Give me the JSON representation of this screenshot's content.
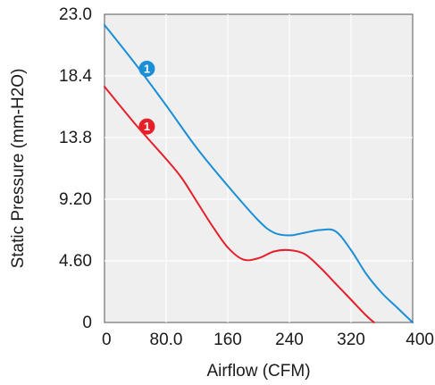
{
  "chart_data": {
    "type": "line",
    "title": "",
    "xlabel": "Airflow (CFM)",
    "ylabel": "Static Pressure (mm-H2O)",
    "xlim": [
      0,
      400
    ],
    "ylim": [
      0,
      23.0
    ],
    "x_ticks": [
      "0",
      "80.0",
      "160",
      "240",
      "320",
      "400"
    ],
    "y_ticks": [
      "0",
      "4.60",
      "9.20",
      "13.8",
      "18.4",
      "23.0"
    ],
    "grid": true,
    "series": [
      {
        "marker": "1",
        "color": "#1b8fd6",
        "points": [
          [
            0,
            22.2
          ],
          [
            40,
            19.3
          ],
          [
            80,
            16.2
          ],
          [
            120,
            13.0
          ],
          [
            160,
            10.2
          ],
          [
            200,
            7.6
          ],
          [
            220,
            6.7
          ],
          [
            240,
            6.5
          ],
          [
            260,
            6.7
          ],
          [
            280,
            6.9
          ],
          [
            300,
            6.8
          ],
          [
            320,
            5.4
          ],
          [
            340,
            3.6
          ],
          [
            360,
            2.2
          ],
          [
            380,
            1.1
          ],
          [
            400,
            0
          ]
        ]
      },
      {
        "marker": "1",
        "color": "#e5202a",
        "points": [
          [
            0,
            17.6
          ],
          [
            40,
            14.8
          ],
          [
            80,
            12.2
          ],
          [
            100,
            10.8
          ],
          [
            120,
            9.0
          ],
          [
            140,
            7.2
          ],
          [
            160,
            5.6
          ],
          [
            180,
            4.7
          ],
          [
            200,
            4.8
          ],
          [
            220,
            5.3
          ],
          [
            240,
            5.4
          ],
          [
            260,
            5.1
          ],
          [
            280,
            4.1
          ],
          [
            300,
            2.9
          ],
          [
            320,
            1.7
          ],
          [
            340,
            0.5
          ],
          [
            350,
            0
          ]
        ]
      }
    ]
  }
}
